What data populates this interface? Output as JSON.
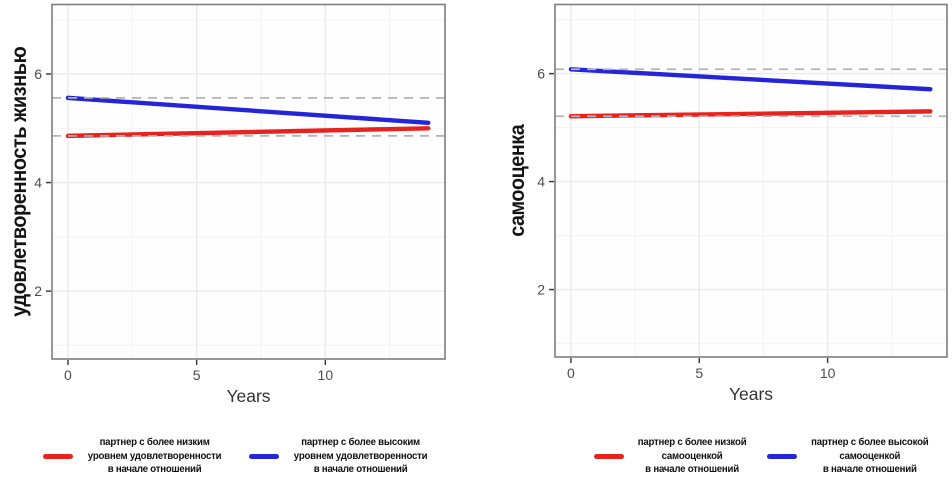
{
  "colors": {
    "red_series": "#e8231e",
    "blue_series": "#2424d9",
    "ref_dash": "#b4b4b4",
    "grid_major": "#e9e9f0",
    "grid_minor": "#f4f4f8",
    "panel_border": "#7d7d7d",
    "tick": "#333333",
    "tick_label": "#4d4d4d"
  },
  "chart_data": [
    {
      "type": "line",
      "title": "",
      "xlabel": "Years",
      "ylabel": "удовлетворенность жизнью",
      "xlim": [
        -0.62,
        14.65
      ],
      "ylim": [
        0.75,
        7.28
      ],
      "x_ticks": [
        0,
        5,
        10
      ],
      "x_minor": [
        2.5,
        7.5,
        12.5
      ],
      "y_ticks": [
        2,
        4,
        6
      ],
      "y_minor": [
        1,
        3,
        5,
        7
      ],
      "grid": true,
      "legend_position": "bottom",
      "series": [
        {
          "name": "партнер с более низким уровнем удовлетворенности в начале отношений",
          "color": "#e8231e",
          "x": [
            0,
            14
          ],
          "y": [
            4.86,
            5.0
          ]
        },
        {
          "name": "партнер с более высоким уровнем удовлетворенности в начале отношений",
          "color": "#2424d9",
          "x": [
            0,
            14
          ],
          "y": [
            5.56,
            5.1
          ]
        }
      ],
      "ref_lines": [
        {
          "y": 4.86,
          "style": "dashed",
          "color": "#b4b4b4"
        },
        {
          "y": 5.56,
          "style": "dashed",
          "color": "#b4b4b4"
        }
      ],
      "legend": [
        {
          "color": "#e8231e",
          "lines": [
            "партнер с более низким",
            "уровнем удовлетворенности",
            "в начале отношений"
          ]
        },
        {
          "color": "#2424d9",
          "lines": [
            "партнер с более высоким",
            "уровнем удовлетворенности",
            "в начале отношений"
          ]
        }
      ]
    },
    {
      "type": "line",
      "title": "",
      "xlabel": "Years",
      "ylabel": "самооценка",
      "xlim": [
        -0.62,
        14.65
      ],
      "ylim": [
        0.75,
        7.28
      ],
      "x_ticks": [
        0,
        5,
        10
      ],
      "x_minor": [
        2.5,
        7.5,
        12.5
      ],
      "y_ticks": [
        2,
        4,
        6
      ],
      "y_minor": [
        1,
        3,
        5,
        7
      ],
      "grid": true,
      "legend_position": "bottom",
      "series": [
        {
          "name": "партнер с более низкой самооценкой в начале отношений",
          "color": "#e8231e",
          "x": [
            0,
            14
          ],
          "y": [
            5.21,
            5.3
          ]
        },
        {
          "name": "партнер с более высокой самооценкой в начале отношений",
          "color": "#2424d9",
          "x": [
            0,
            14
          ],
          "y": [
            6.08,
            5.71
          ]
        }
      ],
      "ref_lines": [
        {
          "y": 5.21,
          "style": "dashed",
          "color": "#b4b4b4"
        },
        {
          "y": 6.08,
          "style": "dashed",
          "color": "#b4b4b4"
        }
      ],
      "legend": [
        {
          "color": "#e8231e",
          "lines": [
            "партнер с более низкой",
            "самооценкой",
            "в начале отношений"
          ]
        },
        {
          "color": "#2424d9",
          "lines": [
            "партнер с более высокой",
            "самооценкой",
            "в начале отношений"
          ]
        }
      ]
    }
  ]
}
